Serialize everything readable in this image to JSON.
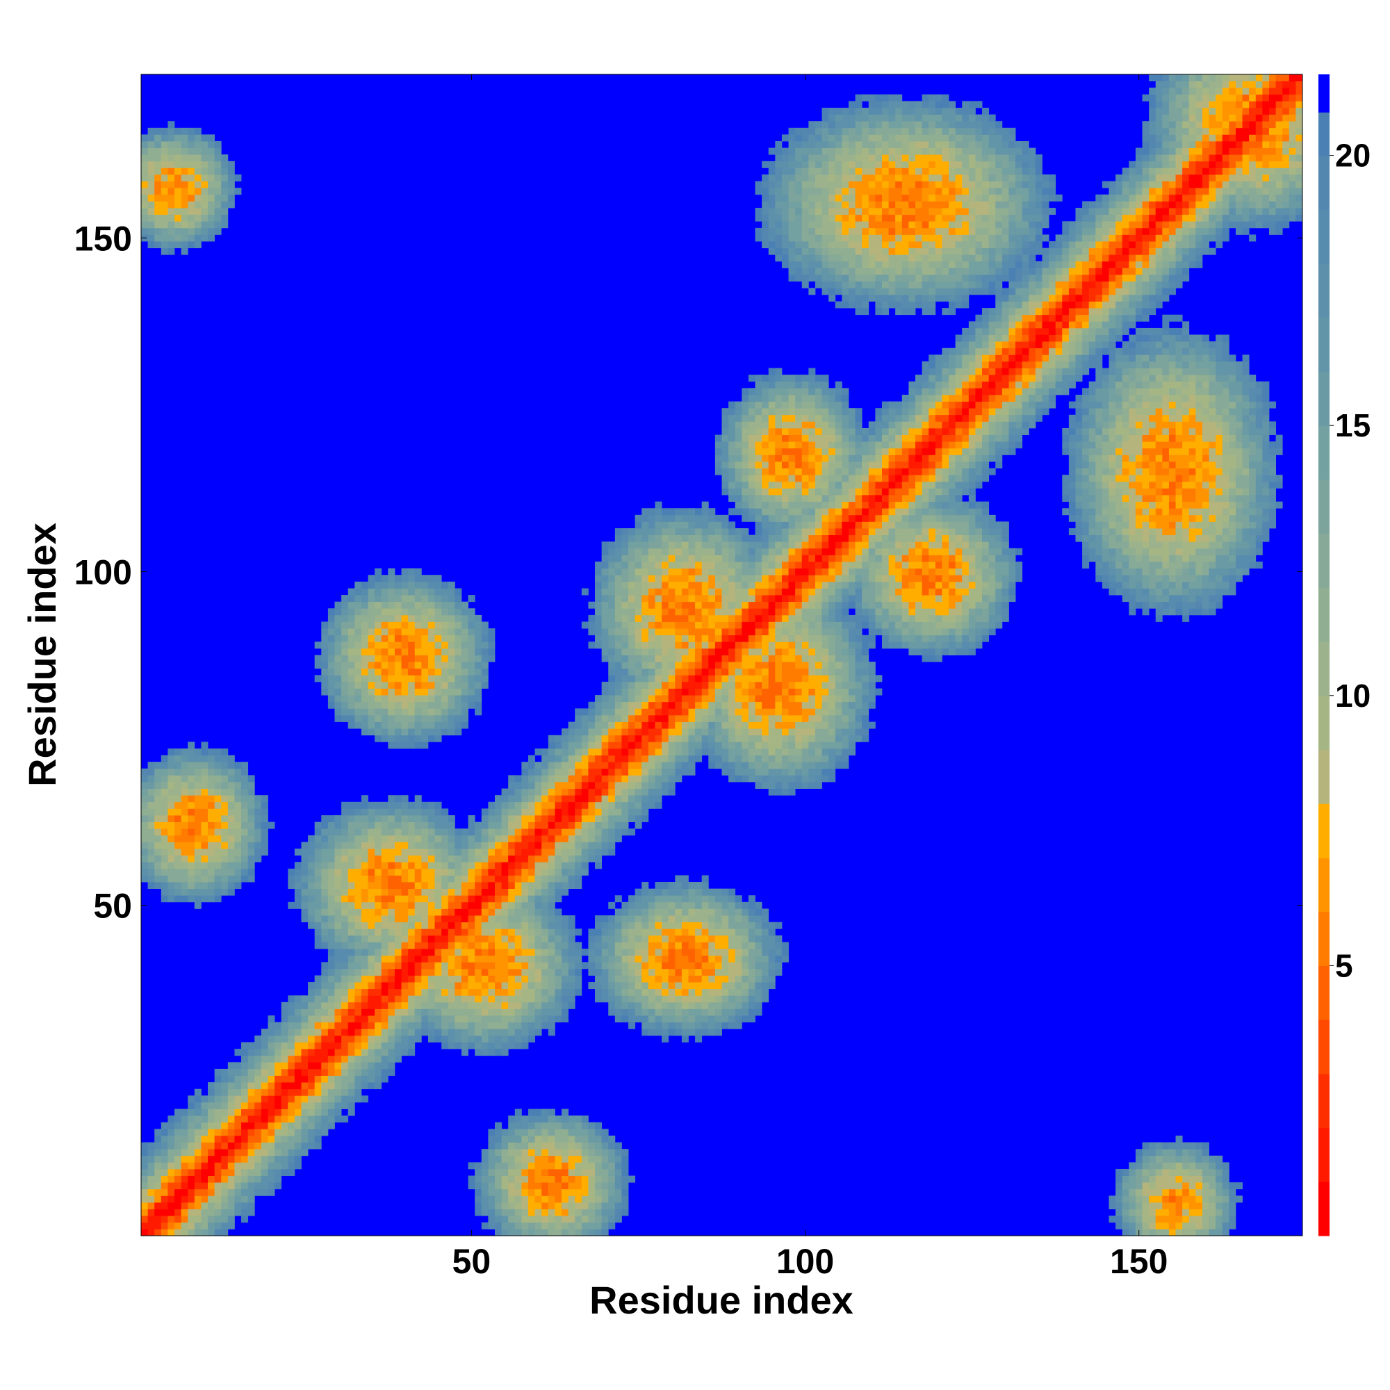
{
  "chart_data": {
    "type": "heatmap",
    "description_of_values": "pairwise residue distance map",
    "xlabel": "Residue index",
    "ylabel": "Residue index",
    "xlim": [
      0.5,
      174.5
    ],
    "ylim": [
      0.5,
      174.5
    ],
    "x_ticks": [
      50,
      100,
      150
    ],
    "y_ticks": [
      50,
      100,
      150
    ],
    "colorbar": {
      "range": [
        0,
        21.5
      ],
      "ticks": [
        5,
        10,
        15,
        20
      ],
      "levels": [
        {
          "max": 1,
          "color": "#ff0000"
        },
        {
          "max": 2,
          "color": "#ff1a00"
        },
        {
          "max": 3,
          "color": "#ff2e00"
        },
        {
          "max": 4,
          "color": "#ff4a00"
        },
        {
          "max": 5,
          "color": "#ff6200"
        },
        {
          "max": 6,
          "color": "#ff7c00"
        },
        {
          "max": 7,
          "color": "#ff9400"
        },
        {
          "max": 8,
          "color": "#ffae00"
        },
        {
          "max": 9,
          "color": "#b5b47d"
        },
        {
          "max": 10,
          "color": "#a5b684"
        },
        {
          "max": 11,
          "color": "#9bb28c"
        },
        {
          "max": 12,
          "color": "#8fae92"
        },
        {
          "max": 13,
          "color": "#87aa98"
        },
        {
          "max": 14,
          "color": "#7da49c"
        },
        {
          "max": 15,
          "color": "#73a0a0"
        },
        {
          "max": 16,
          "color": "#6a9aa4"
        },
        {
          "max": 17,
          "color": "#6395a8"
        },
        {
          "max": 18,
          "color": "#5d90ab"
        },
        {
          "max": 19,
          "color": "#588cae"
        },
        {
          "max": 20,
          "color": "#5387b0"
        },
        {
          "max": 20.8,
          "color": "#4a80b3"
        },
        {
          "max": 21.5,
          "color": "#0000ff"
        }
      ]
    },
    "contact_regions": [
      {
        "x": [
          1,
          174
        ],
        "y": [
          1,
          174
        ],
        "kind": "main-diagonal"
      },
      {
        "x": [
          5,
          12
        ],
        "y": [
          58,
          66
        ],
        "kind": "antiparallel"
      },
      {
        "x": [
          35,
          45
        ],
        "y": [
          82,
          92
        ],
        "kind": "antiparallel"
      },
      {
        "x": [
          32,
          44
        ],
        "y": [
          48,
          58
        ],
        "kind": "antiparallel"
      },
      {
        "x": [
          46,
          58
        ],
        "y": [
          36,
          46
        ],
        "kind": "antiparallel"
      },
      {
        "x": [
          58,
          66
        ],
        "y": [
          5,
          12
        ],
        "kind": "antiparallel"
      },
      {
        "x": [
          76,
          88
        ],
        "y": [
          38,
          46
        ],
        "kind": "antiparallel"
      },
      {
        "x": [
          76,
          88
        ],
        "y": [
          88,
          101
        ],
        "kind": "antiparallel"
      },
      {
        "x": [
          90,
          102
        ],
        "y": [
          76,
          90
        ],
        "kind": "antiparallel"
      },
      {
        "x": [
          94,
          102
        ],
        "y": [
          113,
          122
        ],
        "kind": "antiparallel"
      },
      {
        "x": [
          114,
          124
        ],
        "y": [
          95,
          104
        ],
        "kind": "antiparallel"
      },
      {
        "x": [
          104,
          126
        ],
        "y": [
          148,
          162
        ],
        "kind": "antiparallel"
      },
      {
        "x": [
          148,
          162
        ],
        "y": [
          104,
          126
        ],
        "kind": "antiparallel"
      },
      {
        "x": [
          160,
          174
        ],
        "y": [
          160,
          174
        ],
        "kind": "antiparallel"
      },
      {
        "x": [
          3,
          8
        ],
        "y": [
          155,
          160
        ],
        "kind": "isolated"
      },
      {
        "x": [
          153,
          158
        ],
        "y": [
          3,
          8
        ],
        "kind": "isolated"
      }
    ]
  }
}
